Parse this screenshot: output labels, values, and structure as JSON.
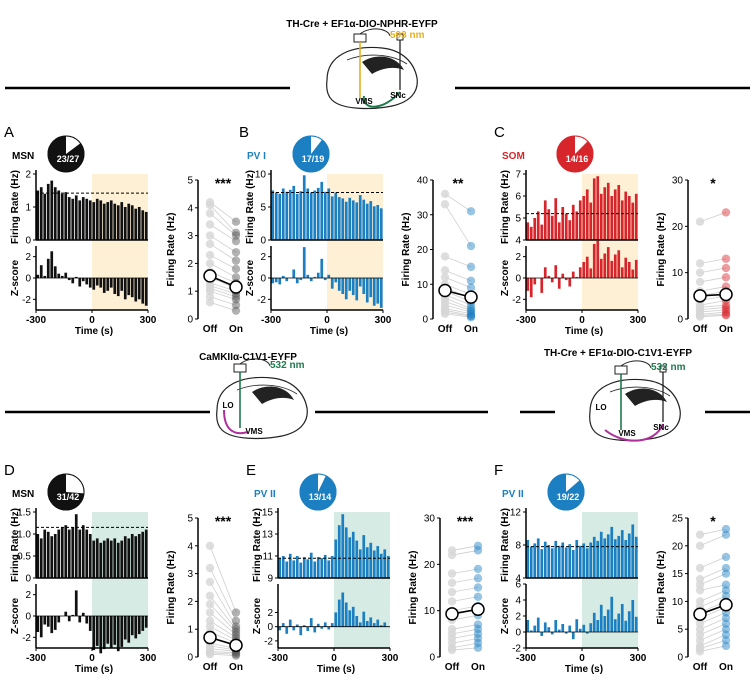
{
  "colors": {
    "msn": "#111111",
    "pv": "#1b7fc1",
    "som": "#d6262c",
    "inhibit_shade": "#fdf0d5",
    "excite_shade": "#d5ebe4",
    "laser_yellow": "#e8b020",
    "laser_green": "#1f7a4d",
    "gray_line": "#cfcfcf"
  },
  "experiments": [
    {
      "title": "TH-Cre + EF1α-DIO-NPHR-EYFP",
      "laser": "593 nm",
      "labels": [
        "VMS",
        "SNc"
      ]
    },
    {
      "title": "CaMKIIα-C1V1-EYFP",
      "laser": "532 nm",
      "labels": [
        "LO",
        "VMS"
      ]
    },
    {
      "title": "TH-Cre + EF1α-DIO-C1V1-EYFP",
      "laser": "532 nm",
      "labels": [
        "LO",
        "VMS",
        "SNc"
      ]
    }
  ],
  "panels": [
    {
      "letter": "A",
      "cell": "MSN",
      "fraction": "23/27",
      "frac_value": 0.852,
      "color_key": "msn",
      "xticks": [
        "-300",
        "0",
        "300"
      ],
      "xlabel": "Time (s)",
      "fr_label": "Firing Rate (Hz)",
      "fr_ticks": [
        "0",
        "1",
        "2"
      ],
      "fr_ylim": [
        0,
        2
      ],
      "baseline": 1.42,
      "z_label": "Z-score",
      "z_ticks": [
        "-2",
        "0",
        "2"
      ],
      "z_ylim": [
        -3,
        3
      ],
      "rate_bars": [
        1.5,
        1.6,
        1.4,
        1.7,
        1.8,
        1.6,
        1.5,
        1.4,
        1.45,
        1.3,
        1.25,
        1.35,
        1.2,
        1.3,
        1.25,
        1.2,
        1.15,
        1.25,
        1.2,
        1.1,
        1.15,
        1.2,
        1.1,
        1.05,
        1.15,
        1.0,
        1.1,
        1.05,
        0.95,
        1.0,
        0.9,
        0.85
      ],
      "z_bars": [
        0.3,
        1.2,
        0.2,
        1.8,
        2.5,
        1.1,
        0.4,
        0.2,
        0.5,
        -0.2,
        -0.5,
        0.1,
        -0.8,
        -0.3,
        -0.6,
        -0.9,
        -1.1,
        -0.7,
        -0.9,
        -1.4,
        -1.2,
        -0.9,
        -1.5,
        -1.7,
        -1.2,
        -2.0,
        -1.6,
        -1.8,
        -2.2,
        -2.0,
        -2.4,
        -2.6
      ],
      "pair_label": "Firing Rate (Hz)",
      "pair_ticks": [
        "0",
        "1",
        "2",
        "3",
        "4",
        "5"
      ],
      "pair_ylim": [
        0,
        5
      ],
      "sig": "***",
      "conds": [
        "Off",
        "On"
      ],
      "mean_off": 1.55,
      "mean_on": 1.15,
      "off_vals": [
        0.8,
        1.0,
        1.2,
        1.3,
        1.5,
        1.7,
        2.0,
        2.3,
        2.7,
        3.0,
        3.4,
        3.8,
        4.1,
        4.2,
        1.1,
        0.6
      ],
      "on_vals": [
        0.5,
        0.7,
        0.9,
        1.0,
        1.1,
        1.3,
        1.5,
        1.8,
        2.1,
        2.4,
        2.8,
        3.0,
        3.1,
        3.5,
        0.8,
        0.3
      ]
    },
    {
      "letter": "B",
      "cell": "PV I",
      "fraction": "17/19",
      "frac_value": 0.895,
      "color_key": "pv",
      "xticks": [
        "-300",
        "0",
        "300"
      ],
      "xlabel": "Time (s)",
      "fr_label": "Firing Rate (Hz)",
      "fr_ticks": [
        "0",
        "5",
        "10"
      ],
      "fr_ylim": [
        0,
        10
      ],
      "baseline": 7.2,
      "z_label": "Z-score",
      "z_ticks": [
        "-2",
        "0",
        "2"
      ],
      "z_ylim": [
        -3,
        3
      ],
      "rate_bars": [
        7.5,
        7.2,
        7.0,
        7.8,
        7.3,
        7.6,
        8.2,
        7.0,
        7.4,
        9.8,
        7.8,
        7.2,
        7.5,
        7.9,
        8.8,
        7.3,
        7.8,
        6.6,
        7.2,
        6.5,
        6.3,
        5.8,
        6.4,
        6.0,
        5.7,
        6.8,
        6.1,
        5.5,
        5.9,
        5.1,
        5.3,
        4.8
      ],
      "z_bars": [
        -0.5,
        -0.4,
        -0.6,
        0.2,
        -0.3,
        0.0,
        0.8,
        -0.5,
        -0.2,
        2.9,
        0.3,
        -0.3,
        0.1,
        0.5,
        1.8,
        -0.2,
        0.3,
        -1.0,
        -0.4,
        -1.2,
        -1.5,
        -2.0,
        -1.2,
        -1.6,
        -2.1,
        -0.8,
        -1.5,
        -2.3,
        -1.8,
        -2.6,
        -2.4,
        -2.8
      ],
      "pair_label": "Firing Rate (Hz)",
      "pair_ticks": [
        "0",
        "10",
        "20",
        "30",
        "40"
      ],
      "pair_ylim": [
        0,
        40
      ],
      "sig": "**",
      "conds": [
        "Off",
        "On"
      ],
      "mean_off": 8.2,
      "mean_on": 6.3,
      "off_vals": [
        36,
        33,
        18,
        14,
        12,
        10,
        9,
        8,
        7,
        6,
        5,
        4,
        3,
        2.5,
        2,
        1.5
      ],
      "on_vals": [
        31,
        21,
        15,
        11,
        9,
        7,
        6,
        5,
        4,
        3,
        2.5,
        2,
        1.5,
        1,
        0.8,
        0.5
      ]
    },
    {
      "letter": "C",
      "cell": "SOM",
      "fraction": "14/16",
      "frac_value": 0.875,
      "color_key": "som",
      "xticks": [
        "-300",
        "0",
        "300"
      ],
      "xlabel": "Time (s)",
      "fr_label": "Firing Rate (Hz)",
      "fr_ticks": [
        "4",
        "5",
        "6",
        "7"
      ],
      "fr_ylim": [
        4,
        7
      ],
      "baseline": 5.2,
      "z_label": "Z-score",
      "z_ticks": [
        "-2",
        "0",
        "2"
      ],
      "z_ylim": [
        -3,
        3
      ],
      "rate_bars": [
        4.8,
        4.6,
        5.0,
        5.3,
        4.7,
        5.8,
        5.4,
        5.1,
        5.9,
        4.8,
        5.5,
        5.2,
        4.9,
        5.6,
        5.3,
        5.8,
        6.0,
        6.3,
        5.7,
        6.8,
        6.9,
        6.1,
        6.4,
        6.6,
        6.0,
        6.3,
        6.5,
        5.8,
        6.2,
        6.0,
        5.7,
        6.1
      ],
      "z_bars": [
        -1.2,
        -1.8,
        -0.6,
        0.0,
        -1.4,
        1.0,
        0.2,
        -0.4,
        1.2,
        -1.0,
        0.4,
        -0.2,
        -0.8,
        0.6,
        0.1,
        1.0,
        1.5,
        2.0,
        0.9,
        3.2,
        3.5,
        1.8,
        2.3,
        2.9,
        1.6,
        2.2,
        2.6,
        1.0,
        1.9,
        1.5,
        0.8,
        1.7
      ],
      "pair_label": "Firing Rate (Hz)",
      "pair_ticks": [
        "0",
        "10",
        "20",
        "30"
      ],
      "pair_ylim": [
        0,
        30
      ],
      "sig": "*",
      "conds": [
        "Off",
        "On"
      ],
      "mean_off": 5.0,
      "mean_on": 5.3,
      "off_vals": [
        21,
        12,
        10,
        8,
        6,
        5,
        4,
        3,
        2.5,
        2,
        1.5,
        1,
        0.8,
        0.5
      ],
      "on_vals": [
        23,
        13,
        11,
        9,
        7,
        6,
        5,
        4,
        3,
        2.5,
        2,
        1.5,
        1,
        0.8
      ]
    },
    {
      "letter": "D",
      "cell": "MSN",
      "fraction": "31/42",
      "frac_value": 0.738,
      "color_key": "msn",
      "xticks": [
        "-300",
        "0",
        "300"
      ],
      "xlabel": "Time (s)",
      "fr_label": "Firing Rate (Hz)",
      "fr_ticks": [
        "0",
        "0.5",
        "1.0",
        "1.5"
      ],
      "fr_ylim": [
        0,
        1.5
      ],
      "baseline": 1.15,
      "z_label": "Z-score",
      "z_ticks": [
        "-2",
        "0",
        "2"
      ],
      "z_ylim": [
        -3,
        3
      ],
      "rate_bars": [
        1.0,
        0.9,
        1.1,
        1.05,
        0.95,
        1.0,
        1.1,
        1.15,
        1.2,
        1.1,
        1.15,
        1.45,
        1.1,
        1.2,
        1.1,
        1.0,
        0.85,
        0.9,
        0.8,
        0.85,
        0.9,
        0.85,
        0.9,
        0.8,
        0.85,
        0.95,
        0.9,
        1.0,
        0.95,
        1.0,
        1.05,
        1.1
      ],
      "z_bars": [
        -1.5,
        -2.0,
        -0.8,
        -1.0,
        -1.6,
        -1.3,
        -0.6,
        0.0,
        0.4,
        -0.5,
        0.1,
        2.4,
        -0.6,
        0.3,
        -0.7,
        -1.4,
        -3.2,
        -2.8,
        -3.5,
        -3.1,
        -2.6,
        -3.0,
        -2.7,
        -3.3,
        -2.9,
        -2.2,
        -2.5,
        -1.8,
        -2.1,
        -1.7,
        -1.4,
        -1.1
      ],
      "pair_label": "Firing Rate (Hz)",
      "pair_ticks": [
        "0",
        "1",
        "2",
        "3",
        "4",
        "5"
      ],
      "pair_ylim": [
        0,
        5
      ],
      "sig": "***",
      "conds": [
        "Off",
        "On"
      ],
      "mean_off": 0.7,
      "mean_on": 0.42,
      "off_vals": [
        4.0,
        3.2,
        2.7,
        2.2,
        1.9,
        1.6,
        1.3,
        1.1,
        0.9,
        0.7,
        0.5,
        0.4,
        0.3,
        0.2,
        0.15,
        0.1
      ],
      "on_vals": [
        1.6,
        1.3,
        1.1,
        1.0,
        0.9,
        0.8,
        0.7,
        0.6,
        0.5,
        0.4,
        0.3,
        0.25,
        0.2,
        0.15,
        0.1,
        0.05
      ]
    },
    {
      "letter": "E",
      "cell": "PV II",
      "fraction": "13/14",
      "frac_value": 0.929,
      "color_key": "pv",
      "xticks": [
        "-300",
        "0",
        "300"
      ],
      "xlabel": "Time (s)",
      "fr_label": "Firing Rate (Hz)",
      "fr_ticks": [
        "9",
        "11",
        "13",
        "15"
      ],
      "fr_ylim": [
        9,
        15
      ],
      "baseline": 10.8,
      "z_label": "Z-score",
      "z_ticks": [
        "-2",
        "0",
        "2"
      ],
      "z_ylim": [
        -3,
        6
      ],
      "rate_bars": [
        10.8,
        11.0,
        10.5,
        11.2,
        10.6,
        11.0,
        10.4,
        10.9,
        10.7,
        11.3,
        10.5,
        10.9,
        10.8,
        11.1,
        10.6,
        11.0,
        12.5,
        13.8,
        14.8,
        13.6,
        12.7,
        13.2,
        12.4,
        11.6,
        12.9,
        11.8,
        12.2,
        11.5,
        11.9,
        11.2,
        11.6,
        11.0
      ],
      "z_bars": [
        -0.5,
        0.5,
        -1.0,
        1.0,
        -0.5,
        0.3,
        -1.2,
        0.2,
        -0.6,
        1.2,
        -0.8,
        0.4,
        -0.3,
        0.6,
        -0.4,
        0.5,
        2.0,
        3.8,
        4.8,
        3.4,
        2.3,
        2.8,
        1.5,
        0.6,
        2.1,
        0.8,
        1.3,
        0.5,
        1.0,
        0.2,
        0.6,
        0.0
      ],
      "pair_label": "Firing Rate (Hz)",
      "pair_ticks": [
        "0",
        "10",
        "20",
        "30"
      ],
      "pair_ylim": [
        0,
        30
      ],
      "sig": "***",
      "conds": [
        "Off",
        "On"
      ],
      "mean_off": 9.3,
      "mean_on": 10.3,
      "off_vals": [
        23,
        22,
        18,
        16,
        14,
        12,
        10,
        8,
        6,
        5,
        4,
        3,
        2,
        1.5
      ],
      "on_vals": [
        24,
        23,
        19,
        17,
        15,
        13,
        11,
        9,
        7,
        6,
        5,
        4,
        3,
        2
      ]
    },
    {
      "letter": "F",
      "cell": "PV II",
      "fraction": "19/22",
      "frac_value": 0.864,
      "color_key": "pv",
      "xticks": [
        "-300",
        "0",
        "300"
      ],
      "xlabel": "Time (s)",
      "fr_label": "Firing Rate (Hz)",
      "fr_ticks": [
        "4",
        "8",
        "12"
      ],
      "fr_ylim": [
        4,
        12
      ],
      "baseline": 7.8,
      "z_label": "Z-score",
      "z_ticks": [
        "-2",
        "0",
        "2",
        "4",
        "6"
      ],
      "z_ylim": [
        -2,
        6
      ],
      "rate_bars": [
        8.6,
        7.8,
        8.2,
        8.8,
        7.5,
        8.4,
        8.0,
        7.6,
        8.5,
        7.9,
        8.3,
        7.7,
        8.1,
        7.4,
        8.6,
        7.9,
        8.2,
        7.6,
        8.3,
        9.0,
        8.5,
        9.6,
        8.8,
        9.3,
        10.2,
        8.7,
        9.1,
        9.8,
        8.6,
        9.4,
        10.5,
        9.0
      ],
      "z_bars": [
        1.5,
        0.2,
        0.8,
        1.8,
        -0.5,
        1.2,
        0.6,
        -0.3,
        1.5,
        0.3,
        1.0,
        -0.2,
        0.8,
        -0.9,
        1.6,
        0.4,
        0.9,
        -0.2,
        1.1,
        2.4,
        1.5,
        3.4,
        2.0,
        2.8,
        4.4,
        1.6,
        2.3,
        3.5,
        1.4,
        2.6,
        4.0,
        1.9
      ],
      "pair_label": "Firing Rate (Hz)",
      "pair_ticks": [
        "0",
        "5",
        "10",
        "15",
        "20",
        "25"
      ],
      "pair_ylim": [
        0,
        25
      ],
      "sig": "*",
      "conds": [
        "Off",
        "On"
      ],
      "mean_off": 7.7,
      "mean_on": 9.4,
      "off_vals": [
        22,
        20,
        16,
        14,
        13,
        12,
        10,
        9,
        8,
        7,
        6,
        5,
        4,
        3,
        2,
        1.5,
        1
      ],
      "on_vals": [
        23,
        22,
        18,
        16,
        15,
        13,
        12,
        11,
        10,
        9,
        8,
        7,
        6,
        5,
        4,
        3,
        2
      ]
    }
  ]
}
